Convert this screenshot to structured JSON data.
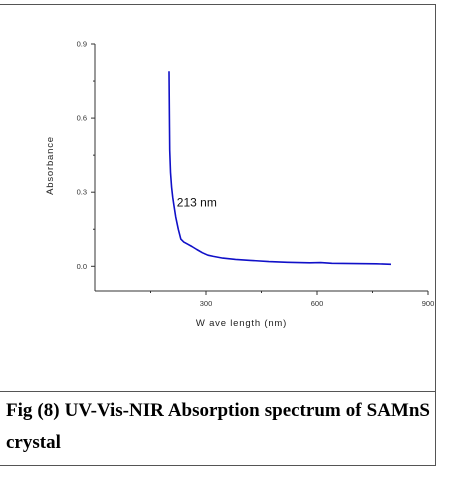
{
  "figure": {
    "caption": "Fig (8) UV-Vis-NIR Absorption spectrum of SAMnS crystal"
  },
  "colors": {
    "series": "#1010c8",
    "axis": "#333333"
  },
  "chart_data": {
    "type": "line",
    "title": "",
    "xlabel": "W ave length (nm)",
    "ylabel": "Absorbance",
    "xlim": [
      0,
      900
    ],
    "ylim": [
      -0.1,
      0.9
    ],
    "xticks": [
      300,
      600,
      900
    ],
    "xtick_labels": [
      "300",
      "600",
      "900"
    ],
    "yticks": [
      0.0,
      0.3,
      0.6,
      0.9
    ],
    "ytick_labels": [
      "0.0",
      "0.3",
      "0.6",
      "0.9"
    ],
    "grid": false,
    "legend": "none",
    "annotations": [
      {
        "text": "213 nm",
        "x": 213,
        "y": 0.25
      }
    ],
    "series": [
      {
        "values": [
          [
            200,
            0.79
          ],
          [
            201,
            0.6
          ],
          [
            202,
            0.47
          ],
          [
            204,
            0.38
          ],
          [
            207,
            0.32
          ],
          [
            210,
            0.28
          ],
          [
            213,
            0.25
          ],
          [
            218,
            0.2
          ],
          [
            225,
            0.15
          ],
          [
            232,
            0.11
          ],
          [
            240,
            0.098
          ],
          [
            250,
            0.09
          ],
          [
            262,
            0.08
          ],
          [
            275,
            0.068
          ],
          [
            290,
            0.055
          ],
          [
            305,
            0.045
          ],
          [
            320,
            0.04
          ],
          [
            345,
            0.033
          ],
          [
            380,
            0.028
          ],
          [
            420,
            0.024
          ],
          [
            470,
            0.019
          ],
          [
            520,
            0.016
          ],
          [
            580,
            0.014
          ],
          [
            610,
            0.015
          ],
          [
            640,
            0.012
          ],
          [
            700,
            0.011
          ],
          [
            760,
            0.01
          ],
          [
            800,
            0.008
          ]
        ]
      }
    ]
  }
}
